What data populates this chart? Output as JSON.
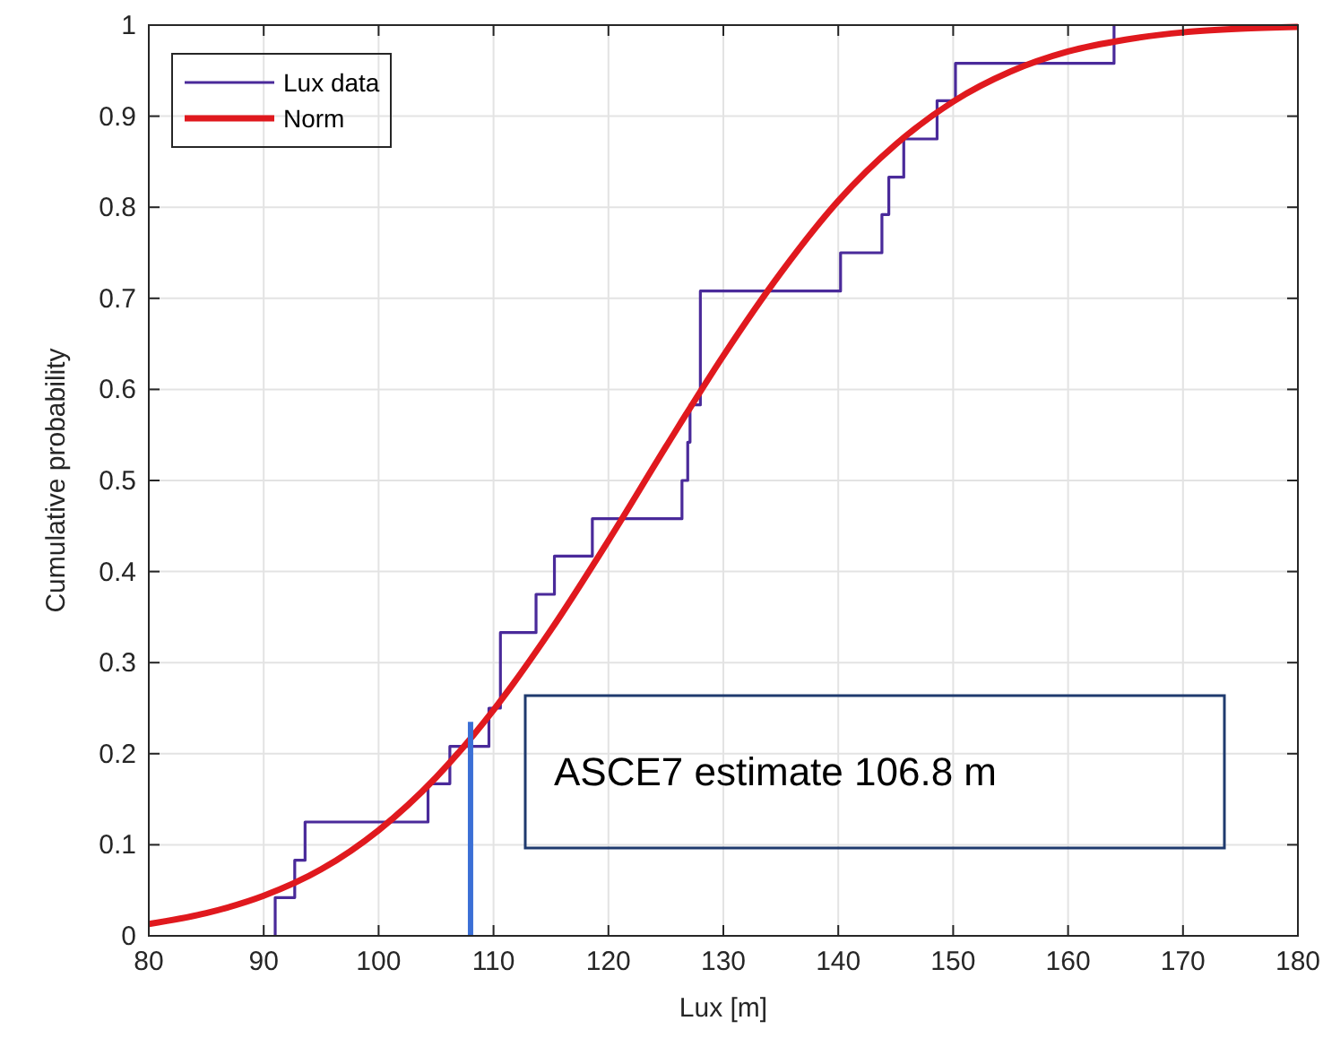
{
  "chart_data": {
    "type": "step",
    "xlabel": "Lux [m]",
    "ylabel": "Cumulative probability",
    "xlim": [
      80,
      180
    ],
    "xticks": [
      80,
      90,
      100,
      110,
      120,
      130,
      140,
      150,
      160,
      170,
      180
    ],
    "ylim": [
      0,
      1
    ],
    "yticks": [
      0,
      0.1,
      0.2,
      0.3,
      0.4,
      0.5,
      0.6,
      0.7,
      0.8,
      0.9,
      1
    ],
    "grid": true,
    "legend": "top left",
    "series": [
      {
        "name": "Lux data",
        "color": "#4a2a9a",
        "x": [
          91,
          91,
          92.7,
          93.6,
          104.3,
          106.2,
          109.6,
          110.6,
          113.7,
          115.3,
          118.6,
          126.4,
          126.9,
          127.1,
          128,
          140.2,
          143.8,
          144.4,
          145.7,
          148.6,
          150.2,
          164
        ],
        "values": [
          0,
          0.042,
          0.083,
          0.125,
          0.167,
          0.208,
          0.25,
          0.333,
          0.375,
          0.417,
          0.458,
          0.5,
          0.542,
          0.583,
          0.708,
          0.75,
          0.792,
          0.833,
          0.875,
          0.917,
          0.958,
          1
        ]
      },
      {
        "name": "Norm",
        "type": "line",
        "color": "#e0191e",
        "x": [
          80,
          85,
          90,
          95,
          100,
          105,
          110,
          115,
          120,
          125,
          130,
          135,
          140,
          145,
          150,
          155,
          160,
          165,
          170,
          175,
          180
        ],
        "values": [
          0.013,
          0.025,
          0.044,
          0.073,
          0.116,
          0.174,
          0.248,
          0.336,
          0.434,
          0.537,
          0.637,
          0.728,
          0.807,
          0.869,
          0.916,
          0.949,
          0.971,
          0.984,
          0.992,
          0.996,
          0.998
        ]
      },
      {
        "type": "line",
        "color": "#3b6fd6",
        "x": [
          108,
          108
        ],
        "values": [
          0,
          0.235
        ]
      }
    ],
    "annotations": [
      "ASCE7 estimate 106.8 m"
    ]
  }
}
